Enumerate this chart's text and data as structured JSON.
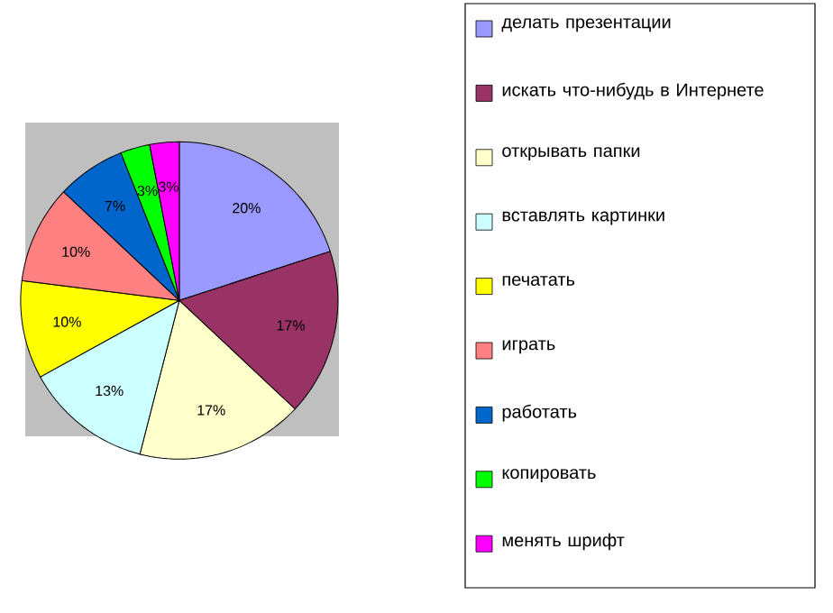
{
  "chart_data": {
    "type": "pie",
    "categories": [
      "делать презентации",
      "искать что-нибудь в Интернете",
      "открывать папки",
      "вставлять картинки",
      "печатать",
      "играть",
      "работать",
      "копировать",
      "менять шрифт"
    ],
    "values": [
      20,
      17,
      17,
      13,
      10,
      10,
      7,
      3,
      3
    ],
    "value_labels": [
      "20%",
      "17%",
      "17%",
      "13%",
      "10%",
      "10%",
      "7%",
      "3%",
      "3%"
    ],
    "colors": [
      "#9999ff",
      "#993366",
      "#ffffcc",
      "#ccffff",
      "#ffff00",
      "#ff8080",
      "#0066cc",
      "#00ff00",
      "#ff00ff"
    ],
    "legend": "right"
  }
}
